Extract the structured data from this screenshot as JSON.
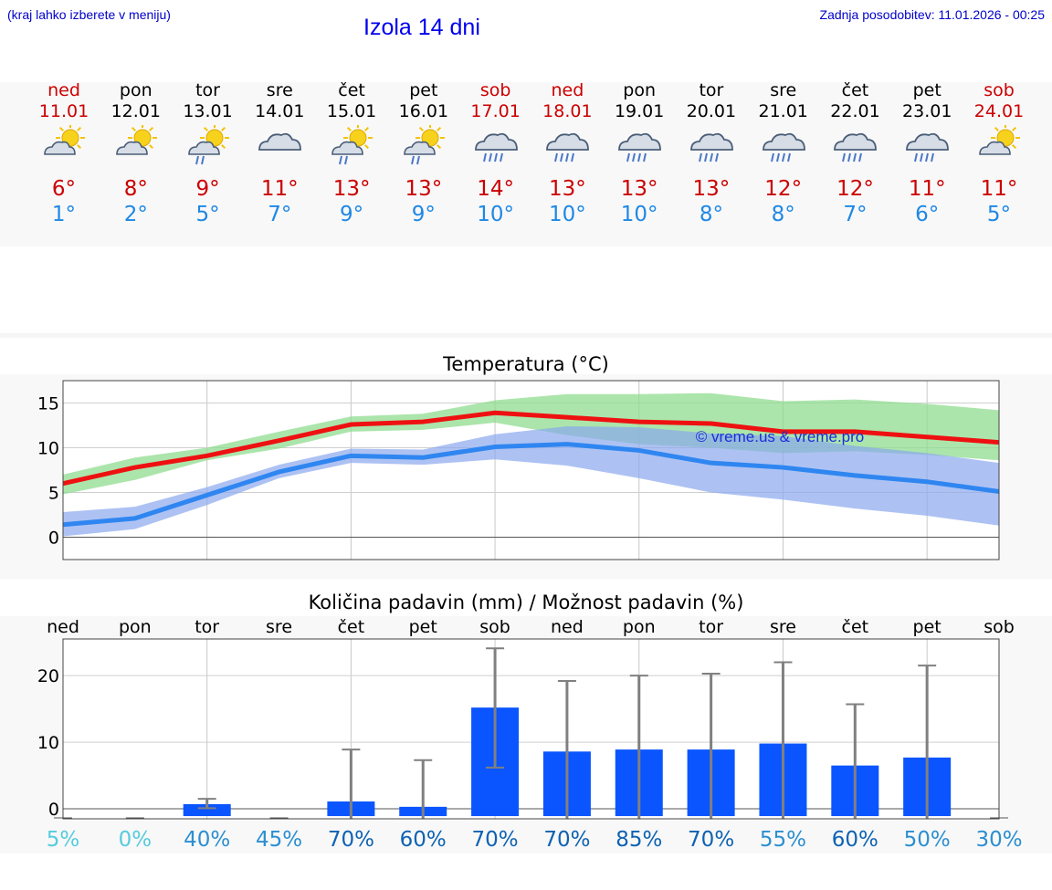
{
  "header": {
    "hint": "(kraj lahko izberete v meniju)",
    "title": "Izola 14 dni",
    "updated": "Zadnja posodobitev: 11.01.2026 - 00:25"
  },
  "days": [
    {
      "name": "ned",
      "date": "11.01",
      "weekend": true,
      "icon": "partly-cloudy-sun-icon",
      "max": "6°",
      "min": "1°"
    },
    {
      "name": "pon",
      "date": "12.01",
      "weekend": false,
      "icon": "partly-cloudy-sun-icon",
      "max": "8°",
      "min": "2°"
    },
    {
      "name": "tor",
      "date": "13.01",
      "weekend": false,
      "icon": "sun-cloud-rain-icon",
      "max": "9°",
      "min": "5°"
    },
    {
      "name": "sre",
      "date": "14.01",
      "weekend": false,
      "icon": "cloudy-icon",
      "max": "11°",
      "min": "7°"
    },
    {
      "name": "čet",
      "date": "15.01",
      "weekend": false,
      "icon": "sun-cloud-rain-icon",
      "max": "13°",
      "min": "9°"
    },
    {
      "name": "pet",
      "date": "16.01",
      "weekend": false,
      "icon": "sun-cloud-rain-icon",
      "max": "13°",
      "min": "9°"
    },
    {
      "name": "sob",
      "date": "17.01",
      "weekend": true,
      "icon": "rain-cloud-icon",
      "max": "14°",
      "min": "10°"
    },
    {
      "name": "ned",
      "date": "18.01",
      "weekend": true,
      "icon": "rain-cloud-icon",
      "max": "13°",
      "min": "10°"
    },
    {
      "name": "pon",
      "date": "19.01",
      "weekend": false,
      "icon": "rain-cloud-icon",
      "max": "13°",
      "min": "10°"
    },
    {
      "name": "tor",
      "date": "20.01",
      "weekend": false,
      "icon": "rain-cloud-icon",
      "max": "13°",
      "min": "8°"
    },
    {
      "name": "sre",
      "date": "21.01",
      "weekend": false,
      "icon": "rain-cloud-icon",
      "max": "12°",
      "min": "8°"
    },
    {
      "name": "čet",
      "date": "22.01",
      "weekend": false,
      "icon": "rain-cloud-icon",
      "max": "12°",
      "min": "7°"
    },
    {
      "name": "pet",
      "date": "23.01",
      "weekend": false,
      "icon": "rain-cloud-icon",
      "max": "11°",
      "min": "6°"
    },
    {
      "name": "sob",
      "date": "24.01",
      "weekend": true,
      "icon": "partly-cloudy-sun-icon",
      "max": "11°",
      "min": "5°"
    }
  ],
  "colors": {
    "max": "#cc0000",
    "min": "#1e88e5",
    "maxLine": "#ee1111",
    "minLine": "#2f86f0",
    "maxBand": "#8fdc8f",
    "minBand": "#8aa8ee",
    "bar": "#0a55ff",
    "errbar": "#808080"
  },
  "chart_data": [
    {
      "type": "line",
      "title": "Temperatura (°C)",
      "watermark": "© vreme.us & vreme.pro",
      "x": [
        0,
        1,
        2,
        3,
        4,
        5,
        6,
        7,
        8,
        9,
        10,
        11,
        12,
        13
      ],
      "ylim": [
        -2.5,
        17.5
      ],
      "yticks": [
        0,
        5,
        10,
        15
      ],
      "series": [
        {
          "name": "max",
          "values": [
            6,
            7.8,
            9.1,
            10.8,
            12.6,
            12.9,
            13.9,
            13.4,
            12.9,
            12.7,
            11.8,
            11.8,
            11.2,
            10.6
          ],
          "low": [
            4.8,
            6.4,
            8.6,
            9.9,
            11.8,
            12.0,
            12.8,
            11.4,
            10.4,
            10.0,
            9.4,
            9.6,
            9.2,
            8.6
          ],
          "high": [
            7.0,
            8.9,
            10.0,
            11.8,
            13.5,
            13.8,
            15.3,
            16.0,
            16.0,
            16.1,
            15.2,
            15.4,
            14.9,
            14.2
          ]
        },
        {
          "name": "min",
          "values": [
            1.4,
            2.1,
            4.7,
            7.3,
            9.1,
            8.9,
            10.1,
            10.4,
            9.7,
            8.3,
            7.8,
            6.9,
            6.2,
            5.1
          ],
          "low": [
            0.1,
            0.9,
            3.6,
            6.6,
            8.3,
            8.1,
            8.7,
            8.0,
            6.6,
            5.0,
            4.2,
            3.2,
            2.4,
            1.3
          ],
          "high": [
            2.8,
            3.4,
            5.6,
            8.1,
            9.9,
            9.8,
            11.5,
            12.4,
            12.3,
            11.6,
            11.3,
            10.2,
            9.4,
            8.3
          ]
        }
      ]
    },
    {
      "type": "bar",
      "title": "Količina padavin (mm) / Možnost padavin (%)",
      "categories": [
        "ned",
        "pon",
        "tor",
        "sre",
        "čet",
        "pet",
        "sob",
        "ned",
        "pon",
        "tor",
        "sre",
        "čet",
        "pet",
        "sob"
      ],
      "values": [
        0,
        0,
        0.7,
        0,
        1.1,
        0.3,
        15.2,
        8.6,
        8.9,
        8.9,
        9.8,
        6.5,
        7.7,
        0
      ],
      "errorHigh": [
        0,
        0,
        1.5,
        0,
        8.9,
        7.3,
        24.1,
        19.2,
        20.0,
        20.3,
        22.0,
        15.7,
        21.5,
        0
      ],
      "errorLow": [
        0,
        0,
        0.1,
        0,
        0,
        0,
        6.2,
        0,
        0,
        0,
        0,
        0,
        0,
        0
      ],
      "probabilities": [
        "5%",
        "0%",
        "40%",
        "45%",
        "70%",
        "60%",
        "70%",
        "70%",
        "85%",
        "70%",
        "55%",
        "60%",
        "50%",
        "30%"
      ],
      "probColors": [
        "#55ccdd",
        "#55ccdd",
        "#2b8fd0",
        "#2b8fd0",
        "#0e62b2",
        "#0e62b2",
        "#0e62b2",
        "#0e62b2",
        "#0e62b2",
        "#0e62b2",
        "#2b8fd0",
        "#0e62b2",
        "#2b8fd0",
        "#2b8fd0"
      ],
      "ylim": [
        -1.5,
        25.5
      ],
      "yticks": [
        0,
        10,
        20
      ]
    }
  ]
}
